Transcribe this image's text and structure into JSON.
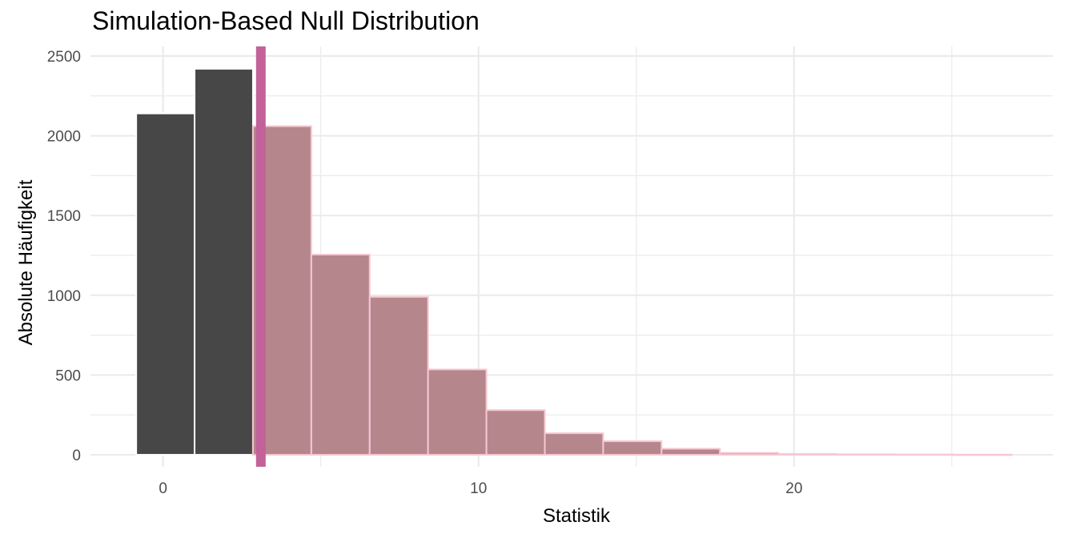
{
  "chart_data": {
    "type": "bar",
    "title": "Simulation-Based Null Distribution",
    "xlabel": "Statistik",
    "ylabel": "Absolute Häufigkeit",
    "xlim": [
      -2.3,
      28.2
    ],
    "ylim": [
      -75,
      2560
    ],
    "x_ticks": [
      0,
      10,
      20
    ],
    "y_ticks": [
      0,
      500,
      1000,
      1500,
      2000,
      2500
    ],
    "grid": true,
    "legend": "none",
    "bin_width": 1.85,
    "bins": [
      {
        "start": -0.85,
        "count": 2140,
        "shaded": false
      },
      {
        "start": 1.0,
        "count": 2420,
        "shaded": false
      },
      {
        "start": 2.85,
        "count": 2060,
        "shaded": true
      },
      {
        "start": 4.7,
        "count": 1255,
        "shaded": true
      },
      {
        "start": 6.55,
        "count": 990,
        "shaded": true
      },
      {
        "start": 8.4,
        "count": 535,
        "shaded": true
      },
      {
        "start": 10.25,
        "count": 280,
        "shaded": true
      },
      {
        "start": 12.1,
        "count": 135,
        "shaded": true
      },
      {
        "start": 13.95,
        "count": 85,
        "shaded": true
      },
      {
        "start": 15.8,
        "count": 38,
        "shaded": true
      },
      {
        "start": 17.65,
        "count": 12,
        "shaded": true
      },
      {
        "start": 19.5,
        "count": 5,
        "shaded": true
      },
      {
        "start": 21.35,
        "count": 3,
        "shaded": true
      },
      {
        "start": 23.2,
        "count": 2,
        "shaded": true
      },
      {
        "start": 25.05,
        "count": 1,
        "shaded": true
      }
    ],
    "observed_statistic": 3.1,
    "colors": {
      "bar": "#474747",
      "bar_outline": "#ffffff",
      "shade": "#b5868c",
      "shade_outline": "#f7c8d2",
      "obs_line": "#c2619a",
      "grid": "#ebebeb"
    }
  }
}
